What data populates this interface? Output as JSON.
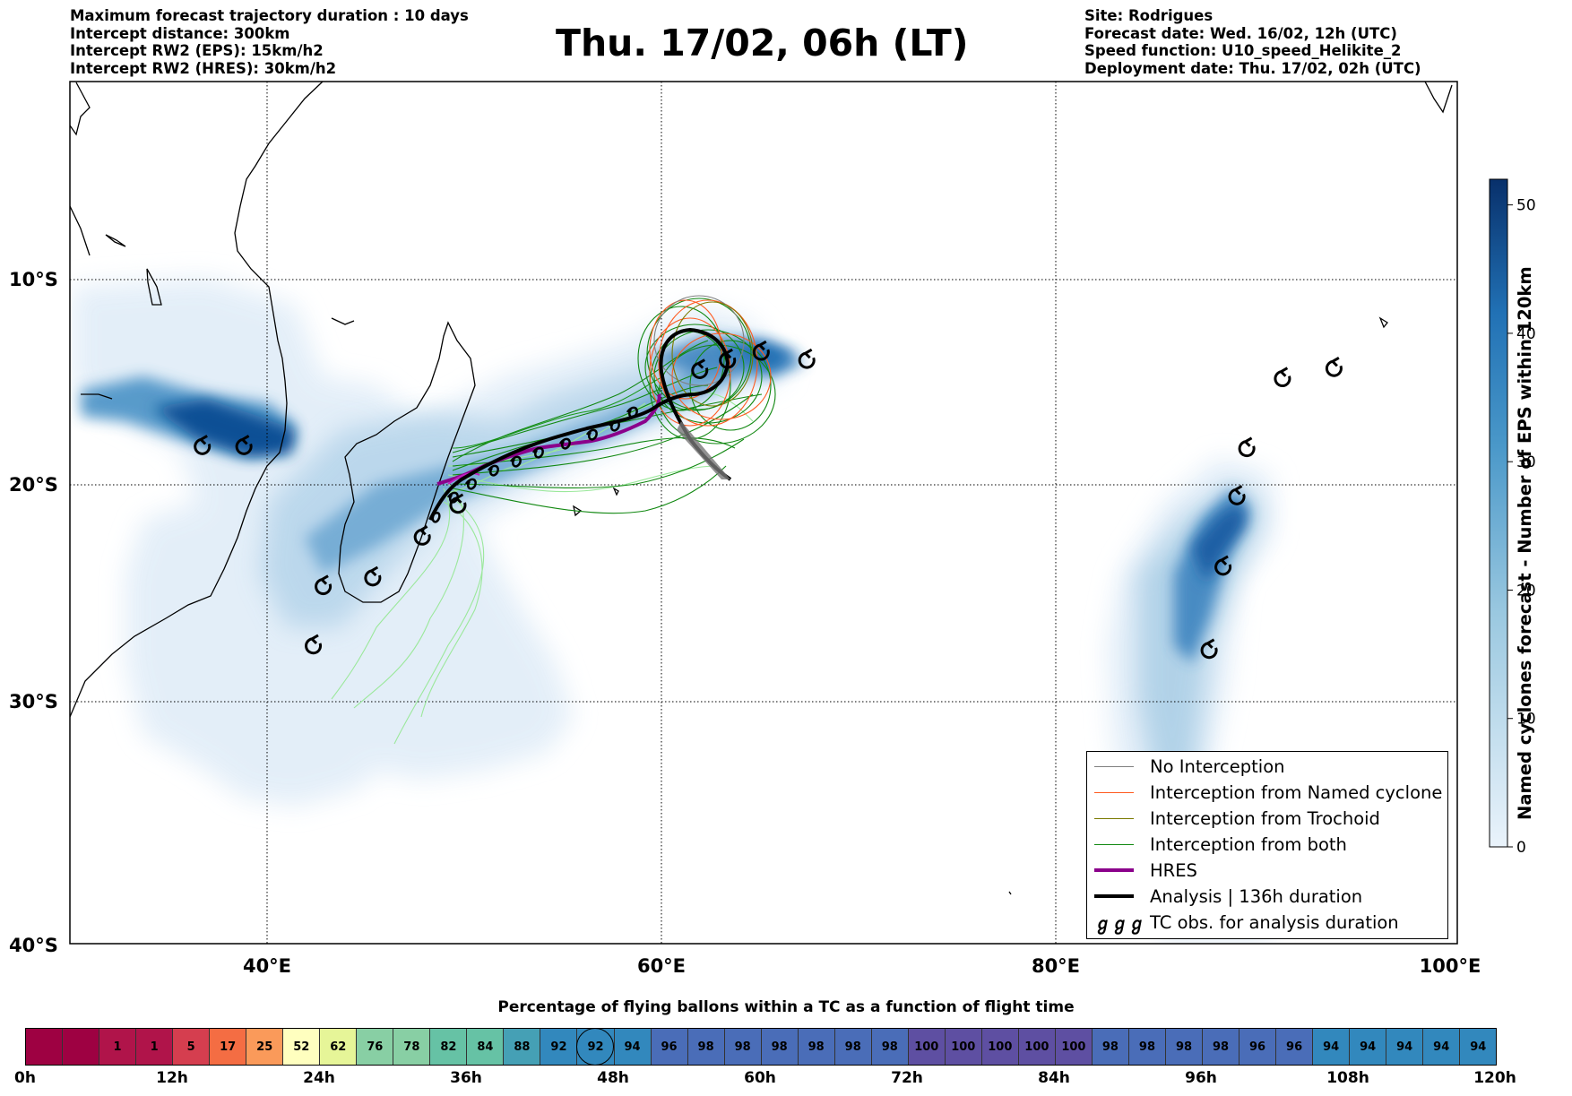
{
  "header": {
    "left_lines": [
      "Maximum forecast trajectory duration : 10 days",
      "Intercept distance: 300km",
      "Intercept RW2 (EPS):  15km/h2",
      "Intercept RW2 (HRES): 30km/h2"
    ],
    "title": "Thu. 17/02, 06h (LT)",
    "right_lines": [
      "Site: Rodrigues",
      "Forecast date: Wed. 16/02, 12h (UTC)",
      "Speed function: U10_speed_Helikite_2",
      "Deployment date: Thu. 17/02, 02h (UTC)"
    ]
  },
  "map": {
    "lat_labels": [
      "10°S",
      "20°S",
      "30°S",
      "40°S"
    ],
    "lon_labels": [
      "40°E",
      "60°E",
      "80°E",
      "100°E"
    ],
    "extent": {
      "lon": [
        30,
        100
      ],
      "lat": [
        -40,
        0
      ]
    },
    "tc_obs": [
      {
        "lon": 36.7,
        "lat": -18.2
      },
      {
        "lon": 38.8,
        "lat": -18.2
      },
      {
        "lon": 42.8,
        "lat": -24.8
      },
      {
        "lon": 42.3,
        "lat": -27.5
      },
      {
        "lon": 45.3,
        "lat": -24.4
      },
      {
        "lon": 47.8,
        "lat": -22.5
      },
      {
        "lon": 49.6,
        "lat": -21.0
      },
      {
        "lon": 61.8,
        "lat": -14.5
      },
      {
        "lon": 63.2,
        "lat": -14.0
      },
      {
        "lon": 64.9,
        "lat": -13.6
      },
      {
        "lon": 67.2,
        "lat": -14.0
      },
      {
        "lon": 88.9,
        "lat": -20.6
      },
      {
        "lon": 89.4,
        "lat": -18.3
      },
      {
        "lon": 88.2,
        "lat": -23.9
      },
      {
        "lon": 87.5,
        "lat": -27.7
      },
      {
        "lon": 91.2,
        "lat": -14.9
      },
      {
        "lon": 93.8,
        "lat": -14.4
      }
    ],
    "analysis_duration": "136h"
  },
  "legend": {
    "items": [
      {
        "label": "No Interception",
        "color": "#808080",
        "width": 1.2
      },
      {
        "label": "Interception from Named cyclone",
        "color": "#ff5a1f",
        "width": 1.2
      },
      {
        "label": "Interception from Trochoid",
        "color": "#7a7a00",
        "width": 1.2
      },
      {
        "label": "Interception from both",
        "color": "#118811",
        "width": 1.2
      },
      {
        "label": "HRES",
        "color": "#8b008b",
        "width": 4
      },
      {
        "label": "Analysis | 136h duration",
        "color": "#000000",
        "width": 4
      },
      {
        "label": "TC obs. for analysis duration",
        "color": "#000000",
        "width": 0
      }
    ],
    "tc_symbol": "ℊℊℊ"
  },
  "colorbar": {
    "title": "Named cyclones forecast - Number of EPS within 120km",
    "ticks": [
      "0",
      "10",
      "20",
      "30",
      "40",
      "50"
    ],
    "min": 0,
    "max": 52,
    "colors": [
      "#e2eef9",
      "#6aaed6",
      "#08306b"
    ]
  },
  "bottom": {
    "title": "Percentage of flying ballons within a TC as a function of flight time",
    "cells": [
      "",
      "",
      "1",
      "1",
      "5",
      "17",
      "25",
      "52",
      "62",
      "76",
      "78",
      "82",
      "84",
      "88",
      "92",
      "92",
      "94",
      "96",
      "98",
      "98",
      "98",
      "98",
      "98",
      "98",
      "100",
      "100",
      "100",
      "100",
      "100",
      "98",
      "98",
      "98",
      "98",
      "96",
      "96",
      "94",
      "94",
      "94",
      "94",
      "94"
    ],
    "highlight_index": 15,
    "time_labels": [
      "0h",
      "12h",
      "24h",
      "36h",
      "48h",
      "60h",
      "72h",
      "84h",
      "96h",
      "108h",
      "120h"
    ]
  }
}
